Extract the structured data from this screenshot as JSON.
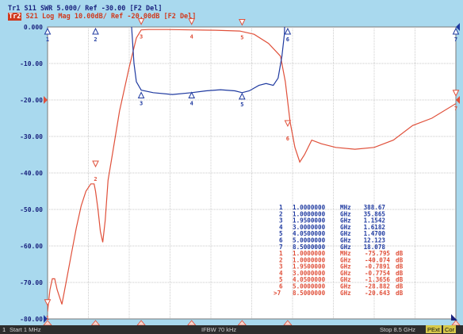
{
  "header": {
    "line1": "Tr1 S11 SWR 5.000/ Ref -30.00 [F2 Del]",
    "line2_tag": "Tr2",
    "line2_text": " S21 Log Mag 10.00dB/ Ref -20.00dB [F2 Del]"
  },
  "colors": {
    "trace1": "#1f3aa0",
    "trace2": "#e0503a",
    "grid": "#b7b7b7",
    "background": "#ffffff"
  },
  "chart_data": {
    "type": "line",
    "y_ticks": [
      "0.000",
      "-10.00",
      "-20.00",
      "-30.00",
      "-40.00",
      "-50.00",
      "-60.00",
      "-70.00",
      "-80.00"
    ],
    "ylim": [
      -80,
      0
    ],
    "xlim": [
      0.001,
      8.5
    ],
    "series": [
      {
        "name": "S21 Log Mag",
        "points": [
          [
            0.001,
            -78
          ],
          [
            0.05,
            -72
          ],
          [
            0.1,
            -69
          ],
          [
            0.15,
            -69
          ],
          [
            0.2,
            -72
          ],
          [
            0.3,
            -76
          ],
          [
            0.4,
            -69
          ],
          [
            0.5,
            -62
          ],
          [
            0.6,
            -55
          ],
          [
            0.7,
            -49
          ],
          [
            0.8,
            -45
          ],
          [
            0.9,
            -43
          ],
          [
            0.97,
            -43
          ],
          [
            1.0,
            -45
          ],
          [
            1.05,
            -50
          ],
          [
            1.1,
            -56
          ],
          [
            1.15,
            -59
          ],
          [
            1.2,
            -53
          ],
          [
            1.26,
            -42
          ],
          [
            1.35,
            -35
          ],
          [
            1.5,
            -23
          ],
          [
            1.7,
            -11
          ],
          [
            1.85,
            -3
          ],
          [
            1.95,
            -0.8
          ],
          [
            2.1,
            -0.7
          ],
          [
            2.5,
            -0.7
          ],
          [
            3.0,
            -0.8
          ],
          [
            3.5,
            -0.9
          ],
          [
            4.0,
            -1.1
          ],
          [
            4.3,
            -2
          ],
          [
            4.6,
            -4.5
          ],
          [
            4.85,
            -8
          ],
          [
            4.95,
            -15
          ],
          [
            5.05,
            -26
          ],
          [
            5.15,
            -33
          ],
          [
            5.25,
            -37
          ],
          [
            5.35,
            -35
          ],
          [
            5.5,
            -31
          ],
          [
            5.7,
            -32
          ],
          [
            6.0,
            -33
          ],
          [
            6.4,
            -33.5
          ],
          [
            6.8,
            -33
          ],
          [
            7.2,
            -31
          ],
          [
            7.6,
            -27
          ],
          [
            8.0,
            -25
          ],
          [
            8.5,
            -21
          ]
        ]
      },
      {
        "name": "S11 SWR",
        "points": [
          [
            1.7,
            10
          ],
          [
            1.75,
            0
          ],
          [
            1.8,
            -10
          ],
          [
            1.85,
            -15
          ],
          [
            1.95,
            -17.3
          ],
          [
            2.2,
            -18
          ],
          [
            2.6,
            -18.5
          ],
          [
            3.0,
            -18
          ],
          [
            3.3,
            -17.5
          ],
          [
            3.6,
            -17.2
          ],
          [
            3.9,
            -17.5
          ],
          [
            4.05,
            -18
          ],
          [
            4.2,
            -17.5
          ],
          [
            4.4,
            -16
          ],
          [
            4.55,
            -15.5
          ],
          [
            4.7,
            -16
          ],
          [
            4.8,
            -14
          ],
          [
            4.88,
            -8
          ],
          [
            4.93,
            -2
          ],
          [
            4.96,
            10
          ]
        ]
      }
    ],
    "markers": [
      {
        "n": "1",
        "f": "1.0000000",
        "u": "MHz",
        "v": "388.67"
      },
      {
        "n": "2",
        "f": "1.0000000",
        "u": "GHz",
        "v": "35.865"
      },
      {
        "n": "3",
        "f": "1.9500000",
        "u": "GHz",
        "v": "1.1542"
      },
      {
        "n": "4",
        "f": "3.0000000",
        "u": "GHz",
        "v": "1.6182"
      },
      {
        "n": "5",
        "f": "4.0500000",
        "u": "GHz",
        "v": "1.4700"
      },
      {
        "n": "6",
        "f": "5.0000000",
        "u": "GHz",
        "v": "12.123"
      },
      {
        "n": "7",
        "f": "8.5000000",
        "u": "GHz",
        "v": "18.078"
      }
    ],
    "markers_s21": [
      {
        "n": "1",
        "f": "1.0000000",
        "u": "MHz",
        "v": "-75.795",
        "d": "dB"
      },
      {
        "n": "2",
        "f": "1.0000000",
        "u": "GHz",
        "v": "-40.074",
        "d": "dB"
      },
      {
        "n": "3",
        "f": "1.9500000",
        "u": "GHz",
        "v": "-0.7891",
        "d": "dB"
      },
      {
        "n": "4",
        "f": "3.0000000",
        "u": "GHz",
        "v": "-0.7754",
        "d": "dB"
      },
      {
        "n": "5",
        "f": "4.0500000",
        "u": "GHz",
        "v": "-1.3656",
        "d": "dB"
      },
      {
        "n": "6",
        "f": "5.0000000",
        "u": "GHz",
        "v": "-28.882",
        "d": "dB"
      },
      {
        "n": "7",
        "f": "8.5000000",
        "u": "GHz",
        "v": "-20.643",
        "d": "dB",
        "prefix": ">"
      }
    ]
  },
  "status": {
    "channel": "1",
    "start": "Start 1 MHz",
    "ifbw": "IFBW 70 kHz",
    "stop": "Stop 8.5 GHz",
    "ext": "PExt",
    "cor": "Cor"
  }
}
